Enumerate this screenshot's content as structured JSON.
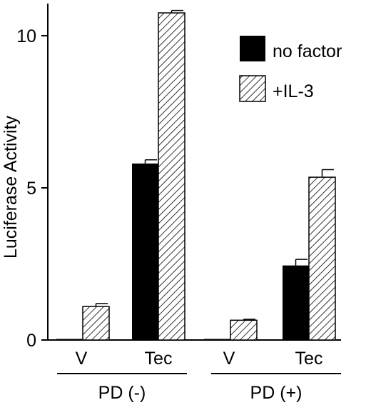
{
  "chart_data": {
    "type": "bar",
    "ylabel": "Luciferase Activity",
    "ylim": [
      0,
      11
    ],
    "yticks": [
      0,
      5,
      10
    ],
    "grid": false,
    "legend_position": "top-right",
    "groups": [
      {
        "label": "PD (-)",
        "categories": [
          "V",
          "Tec"
        ]
      },
      {
        "label": "PD (+)",
        "categories": [
          "V",
          "Tec"
        ]
      }
    ],
    "categories": [
      "V",
      "Tec",
      "V",
      "Tec"
    ],
    "series": [
      {
        "name": "no factor",
        "fill": "solid",
        "color": "#000000",
        "values": [
          0.02,
          5.8,
          0.02,
          2.45
        ],
        "errors": [
          0.0,
          0.12,
          0.0,
          0.2
        ]
      },
      {
        "name": "+IL-3",
        "fill": "hatched",
        "color": "#000000",
        "values": [
          1.1,
          10.75,
          0.65,
          5.35
        ],
        "errors": [
          0.1,
          0.08,
          0.03,
          0.25
        ]
      }
    ]
  }
}
